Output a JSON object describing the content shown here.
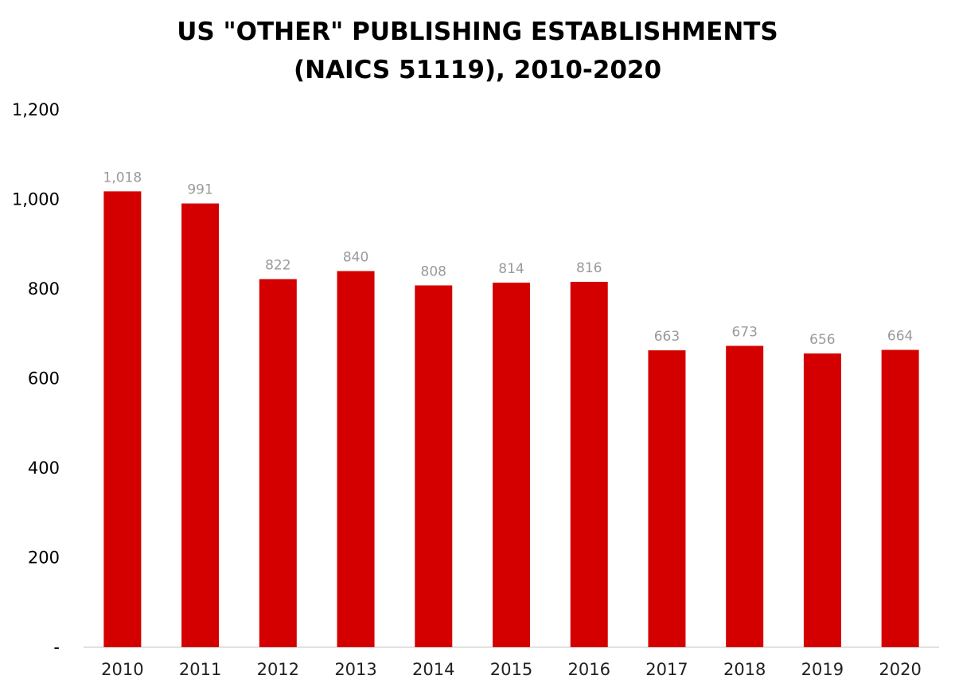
{
  "chart_data": {
    "type": "bar",
    "title_lines": [
      "US \"OTHER\" PUBLISHING ESTABLISHMENTS",
      "(NAICS 51119), 2010-2020"
    ],
    "categories": [
      "2010",
      "2011",
      "2012",
      "2013",
      "2014",
      "2015",
      "2016",
      "2017",
      "2018",
      "2019",
      "2020"
    ],
    "values": [
      1018,
      991,
      822,
      840,
      808,
      814,
      816,
      663,
      673,
      656,
      664
    ],
    "data_labels": [
      "1,018",
      "991",
      "822",
      "840",
      "808",
      "814",
      "816",
      "663",
      "673",
      "656",
      "664"
    ],
    "y_ticks": [
      0,
      200,
      400,
      600,
      800,
      1000,
      1200
    ],
    "y_tick_labels": [
      "-",
      "200",
      "400",
      "600",
      "800",
      "1,000",
      "1,200"
    ],
    "ylim": [
      0,
      1200
    ],
    "grid": false,
    "legend": "none",
    "bar_color": "#d40000",
    "label_color": "#9a9a9a",
    "axis_color": "#d9d9d9"
  }
}
